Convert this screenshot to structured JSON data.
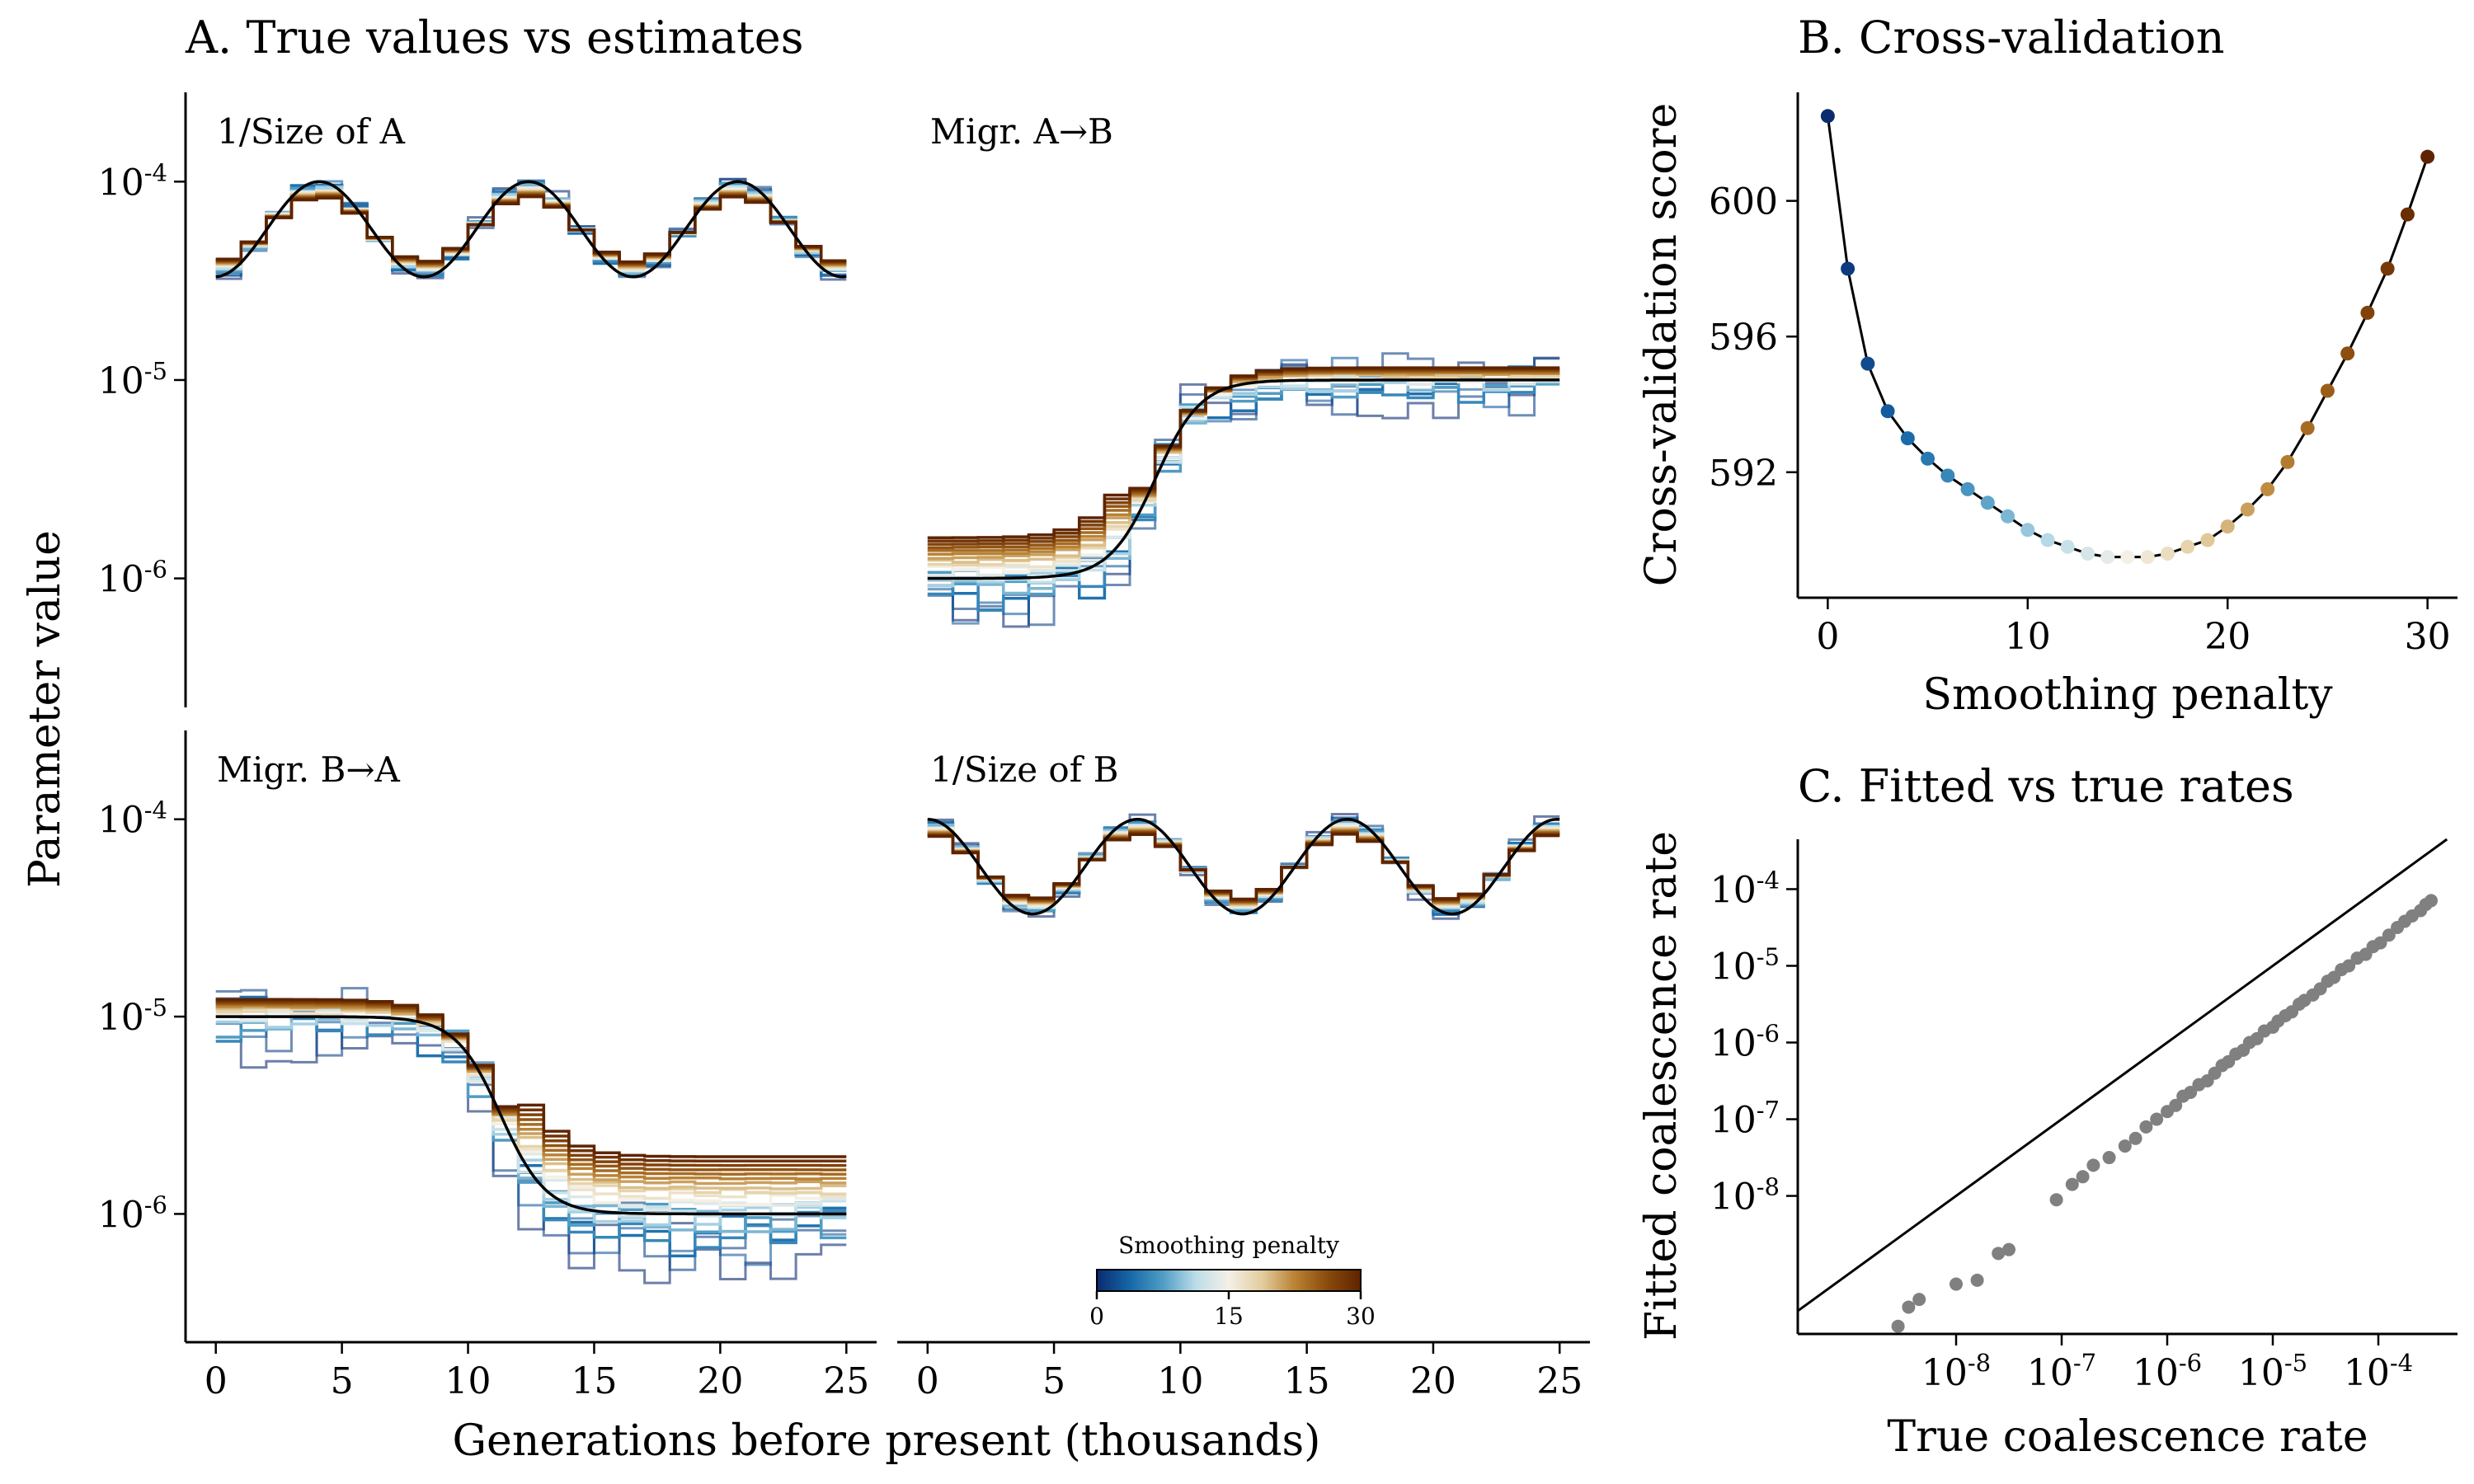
{
  "chart_data": [
    {
      "panel": "A",
      "type": "line",
      "title": "A. True values vs estimates",
      "xlabel": "Generations before present (thousands)",
      "ylabel": "Parameter value",
      "y_scale": "log",
      "shared_axes": true,
      "xlim": [
        -1.2,
        26.2
      ],
      "ylim_log10": [
        -6.65,
        -3.55
      ],
      "x_ticks": [
        0,
        5,
        10,
        15,
        20,
        25
      ],
      "x_tick_labels": [
        "0",
        "5",
        "10",
        "15",
        "20",
        "25"
      ],
      "y_ticks_log10": [
        -4,
        -5,
        -6
      ],
      "y_tick_labels": [
        {
          "base": "10",
          "exp": "-4"
        },
        {
          "base": "10",
          "exp": "-5"
        },
        {
          "base": "10",
          "exp": "-6"
        }
      ],
      "subplots": [
        {
          "label": "1/Size of A",
          "true_curve": {
            "kind": "periodic",
            "log_min": -4.48,
            "log_max": -4.0,
            "period": 8.3,
            "peak_at": 4.1
          },
          "estimates": {
            "spread": 0.0,
            "bias": 0.0,
            "noise": 0.03
          }
        },
        {
          "label": "Migr. A→B",
          "true_curve": {
            "kind": "sigmoid",
            "log_start": -6.0,
            "log_end": -5.0,
            "center": 9.0,
            "scale": 0.9
          },
          "estimates": {
            "spread": 0.25,
            "bias": 0.08,
            "noise": 0.2
          }
        },
        {
          "label": "Migr. B→A",
          "true_curve": {
            "kind": "sigmoid",
            "log_start": -5.0,
            "log_end": -6.0,
            "center": 11.3,
            "scale": 0.9
          },
          "estimates": {
            "spread": 0.3,
            "bias": 0.14,
            "noise": 0.22
          }
        },
        {
          "label": "1/Size of B",
          "true_curve": {
            "kind": "periodic",
            "log_min": -4.48,
            "log_max": -4.0,
            "period": 8.3,
            "peak_at": 0.0
          },
          "estimates": {
            "spread": 0.0,
            "bias": 0.0,
            "noise": 0.03
          }
        }
      ],
      "colorbar": {
        "label": "Smoothing penalty",
        "range": [
          0,
          30
        ],
        "ticks": [
          "0",
          "15",
          "30"
        ],
        "colors": [
          "#0b2a6f",
          "#1667a8",
          "#4f9cc4",
          "#bcdde9",
          "#f4f0e6",
          "#e3cd9f",
          "#b98234",
          "#8a4a0c",
          "#5e2400"
        ]
      }
    },
    {
      "panel": "B",
      "type": "scatter",
      "title": "B. Cross-validation",
      "xlabel": "Smoothing penalty",
      "ylabel": "Cross-validation score",
      "xlim": [
        -1.5,
        31.5
      ],
      "ylim": [
        588.3,
        603.2
      ],
      "x_ticks": [
        0,
        10,
        20,
        30
      ],
      "y_ticks": [
        592,
        596,
        600
      ],
      "x": [
        0,
        1,
        2,
        3,
        4,
        5,
        6,
        7,
        8,
        9,
        10,
        11,
        12,
        13,
        14,
        15,
        16,
        17,
        18,
        19,
        20,
        21,
        22,
        23,
        24,
        25,
        26,
        27,
        28,
        29,
        30
      ],
      "y": [
        602.5,
        598.0,
        595.2,
        593.8,
        593.0,
        592.4,
        591.9,
        591.5,
        591.1,
        590.7,
        590.3,
        590.0,
        589.8,
        589.6,
        589.5,
        589.5,
        589.5,
        589.6,
        589.8,
        590.0,
        590.4,
        590.9,
        591.5,
        592.3,
        593.3,
        594.4,
        595.5,
        596.7,
        598.0,
        599.6,
        601.3
      ]
    },
    {
      "panel": "C",
      "type": "scatter",
      "title": "C. Fitted vs true rates",
      "xlabel": "True coalescence rate",
      "ylabel": "Fitted coalescence rate",
      "x_scale": "log",
      "y_scale": "log",
      "xlim_log10": [
        -9.5,
        -3.25
      ],
      "ylim_log10": [
        -9.8,
        -3.35
      ],
      "x_ticks_log10": [
        -8,
        -7,
        -6,
        -5,
        -4
      ],
      "y_ticks_log10": [
        -8,
        -7,
        -6,
        -5,
        -4
      ],
      "x_tick_labels": [
        {
          "base": "10",
          "exp": "-8"
        },
        {
          "base": "10",
          "exp": "-7"
        },
        {
          "base": "10",
          "exp": "-6"
        },
        {
          "base": "10",
          "exp": "-5"
        },
        {
          "base": "10",
          "exp": "-4"
        }
      ],
      "y_tick_labels": [
        {
          "base": "10",
          "exp": "-8"
        },
        {
          "base": "10",
          "exp": "-7"
        },
        {
          "base": "10",
          "exp": "-6"
        },
        {
          "base": "10",
          "exp": "-5"
        },
        {
          "base": "10",
          "exp": "-4"
        }
      ],
      "reference_line": "y = x",
      "point_color": "#808080",
      "points_log10": [
        [
          -8.55,
          -9.7
        ],
        [
          -8.45,
          -9.45
        ],
        [
          -8.35,
          -9.35
        ],
        [
          -8.0,
          -9.15
        ],
        [
          -7.8,
          -9.1
        ],
        [
          -7.6,
          -8.75
        ],
        [
          -7.5,
          -8.7
        ],
        [
          -7.05,
          -8.05
        ],
        [
          -6.9,
          -7.85
        ],
        [
          -6.8,
          -7.75
        ],
        [
          -6.7,
          -7.6
        ],
        [
          -6.55,
          -7.5
        ],
        [
          -6.4,
          -7.35
        ],
        [
          -6.3,
          -7.25
        ],
        [
          -6.2,
          -7.1
        ],
        [
          -6.1,
          -7.0
        ],
        [
          -6.0,
          -6.9
        ],
        [
          -5.92,
          -6.82
        ],
        [
          -5.85,
          -6.7
        ],
        [
          -5.78,
          -6.65
        ],
        [
          -5.7,
          -6.55
        ],
        [
          -5.62,
          -6.5
        ],
        [
          -5.55,
          -6.4
        ],
        [
          -5.48,
          -6.3
        ],
        [
          -5.42,
          -6.25
        ],
        [
          -5.35,
          -6.15
        ],
        [
          -5.28,
          -6.1
        ],
        [
          -5.22,
          -6.0
        ],
        [
          -5.15,
          -5.95
        ],
        [
          -5.08,
          -5.85
        ],
        [
          -5.0,
          -5.8
        ],
        [
          -4.95,
          -5.72
        ],
        [
          -4.88,
          -5.65
        ],
        [
          -4.82,
          -5.6
        ],
        [
          -4.75,
          -5.5
        ],
        [
          -4.7,
          -5.45
        ],
        [
          -4.62,
          -5.38
        ],
        [
          -4.55,
          -5.3
        ],
        [
          -4.48,
          -5.2
        ],
        [
          -4.42,
          -5.15
        ],
        [
          -4.35,
          -5.05
        ],
        [
          -4.28,
          -5.0
        ],
        [
          -4.2,
          -4.9
        ],
        [
          -4.12,
          -4.85
        ],
        [
          -4.05,
          -4.75
        ],
        [
          -3.98,
          -4.7
        ],
        [
          -3.9,
          -4.6
        ],
        [
          -3.82,
          -4.5
        ],
        [
          -3.75,
          -4.42
        ],
        [
          -3.68,
          -4.35
        ],
        [
          -3.6,
          -4.28
        ],
        [
          -3.55,
          -4.2
        ],
        [
          -3.5,
          -4.15
        ]
      ]
    }
  ]
}
